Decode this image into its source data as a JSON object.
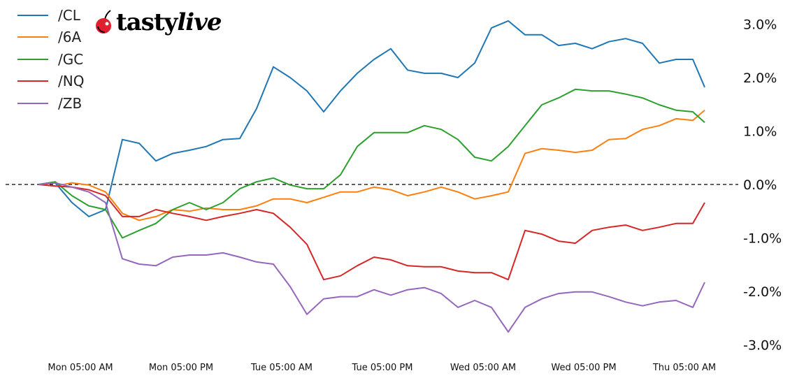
{
  "logo": {
    "text_bold": "tasty",
    "text_italic": "live",
    "cherry_color": "#e0202e"
  },
  "chart_data": {
    "type": "line",
    "title": "",
    "xlabel": "",
    "ylabel": "",
    "ylim": [
      -3.2,
      3.3
    ],
    "y_ticks": [
      3.0,
      2.0,
      1.0,
      0.0,
      -1.0,
      -2.0,
      -3.0
    ],
    "y_tick_labels": [
      "3.0%",
      "2.0%",
      "1.0%",
      "0.0%",
      "-1.0%",
      "-2.0%",
      "-3.0%"
    ],
    "y_axis_side": "right",
    "x_ticks": [
      "Mon 05:00",
      "Mon 17:00",
      "Tue 05:00",
      "Tue 17:00",
      "Wed 05:00",
      "Wed 17:00",
      "Thu 05:00"
    ],
    "x_tick_labels": [
      "Mon 05:00 AM",
      "Mon 05:00 PM",
      "Tue 05:00 AM",
      "Tue 05:00 PM",
      "Wed 05:00 AM",
      "Wed 05:00 PM",
      "Thu 05:00 AM"
    ],
    "reference_line": {
      "y": 0.0,
      "style": "dashed",
      "color": "#000000"
    },
    "grid": false,
    "legend_position": "top-left",
    "x": [
      "Mon 00:00",
      "Mon 02:00",
      "Mon 04:00",
      "Mon 06:00",
      "Mon 08:00",
      "Mon 10:00",
      "Mon 12:00",
      "Mon 14:00",
      "Mon 16:00",
      "Mon 18:00",
      "Mon 20:00",
      "Mon 22:00",
      "Tue 00:00",
      "Tue 02:00",
      "Tue 04:00",
      "Tue 06:00",
      "Tue 08:00",
      "Tue 10:00",
      "Tue 12:00",
      "Tue 14:00",
      "Tue 16:00",
      "Tue 18:00",
      "Tue 20:00",
      "Tue 22:00",
      "Wed 00:00",
      "Wed 02:00",
      "Wed 04:00",
      "Wed 06:00",
      "Wed 08:00",
      "Wed 10:00",
      "Wed 12:00",
      "Wed 14:00",
      "Wed 16:00",
      "Wed 18:00",
      "Wed 20:00",
      "Wed 22:00",
      "Thu 00:00",
      "Thu 02:00",
      "Thu 04:00",
      "Thu 06:00",
      "Thu 07:25"
    ],
    "series": [
      {
        "name": "/CL",
        "color": "#1f77b4",
        "values": [
          0,
          0.03,
          -0.34,
          -0.6,
          -0.47,
          0.84,
          0.77,
          0.44,
          0.58,
          0.64,
          0.71,
          0.84,
          0.86,
          1.42,
          2.2,
          2.0,
          1.75,
          1.36,
          1.75,
          2.08,
          2.34,
          2.54,
          2.14,
          2.08,
          2.08,
          2.0,
          2.27,
          2.93,
          3.06,
          2.8,
          2.8,
          2.6,
          2.64,
          2.54,
          2.67,
          2.73,
          2.64,
          2.27,
          2.34,
          2.34,
          1.82
        ]
      },
      {
        "name": "/6A",
        "color": "#ff7f0e",
        "values": [
          0,
          -0.03,
          0.03,
          -0.01,
          -0.14,
          -0.54,
          -0.67,
          -0.6,
          -0.47,
          -0.5,
          -0.44,
          -0.47,
          -0.47,
          -0.4,
          -0.27,
          -0.27,
          -0.34,
          -0.24,
          -0.14,
          -0.14,
          -0.05,
          -0.1,
          -0.21,
          -0.14,
          -0.05,
          -0.14,
          -0.27,
          -0.21,
          -0.14,
          0.58,
          0.67,
          0.64,
          0.6,
          0.64,
          0.84,
          0.86,
          1.03,
          1.1,
          1.23,
          1.2,
          1.39
        ]
      },
      {
        "name": "/GC",
        "color": "#2ca02c",
        "values": [
          0,
          0.05,
          -0.21,
          -0.4,
          -0.47,
          -1.0,
          -0.86,
          -0.73,
          -0.47,
          -0.34,
          -0.47,
          -0.34,
          -0.08,
          0.05,
          0.12,
          -0.01,
          -0.08,
          -0.08,
          0.18,
          0.71,
          0.97,
          0.97,
          0.97,
          1.1,
          1.03,
          0.84,
          0.51,
          0.44,
          0.71,
          1.1,
          1.49,
          1.62,
          1.78,
          1.75,
          1.75,
          1.69,
          1.62,
          1.49,
          1.39,
          1.36,
          1.16
        ]
      },
      {
        "name": "/NQ",
        "color": "#d62728",
        "values": [
          0,
          -0.03,
          -0.05,
          -0.1,
          -0.21,
          -0.6,
          -0.6,
          -0.47,
          -0.54,
          -0.6,
          -0.67,
          -0.6,
          -0.54,
          -0.47,
          -0.54,
          -0.8,
          -1.12,
          -1.78,
          -1.71,
          -1.52,
          -1.36,
          -1.41,
          -1.52,
          -1.54,
          -1.54,
          -1.62,
          -1.65,
          -1.65,
          -1.78,
          -0.86,
          -0.93,
          -1.06,
          -1.1,
          -0.86,
          -0.8,
          -0.76,
          -0.86,
          -0.8,
          -0.73,
          -0.73,
          -0.34
        ]
      },
      {
        "name": "/ZB",
        "color": "#9467bd",
        "values": [
          0,
          0.03,
          -0.05,
          -0.14,
          -0.34,
          -1.39,
          -1.49,
          -1.52,
          -1.36,
          -1.32,
          -1.32,
          -1.28,
          -1.36,
          -1.45,
          -1.49,
          -1.91,
          -2.43,
          -2.14,
          -2.1,
          -2.1,
          -1.97,
          -2.07,
          -1.97,
          -1.93,
          -2.04,
          -2.3,
          -2.17,
          -2.3,
          -2.76,
          -2.3,
          -2.14,
          -2.04,
          -2.01,
          -2.01,
          -2.1,
          -2.2,
          -2.27,
          -2.2,
          -2.17,
          -2.3,
          -1.83
        ]
      }
    ]
  }
}
